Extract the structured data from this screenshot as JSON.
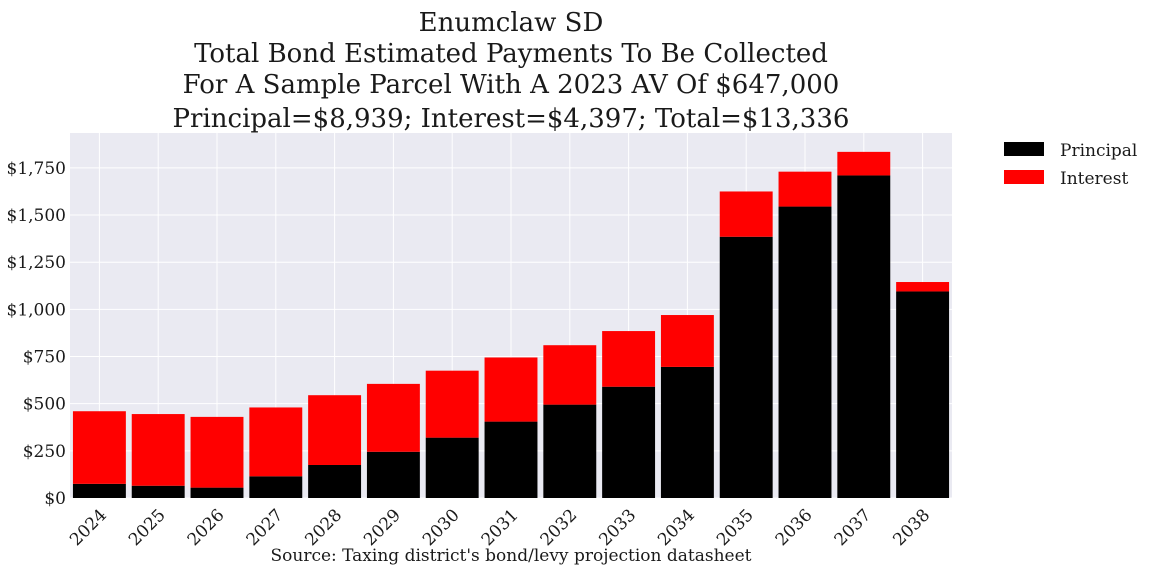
{
  "chart_data": {
    "type": "bar",
    "stacked": true,
    "title": [
      "Enumclaw SD",
      "Total Bond Estimated Payments To Be Collected",
      "For A Sample Parcel With A 2023 AV Of $647,000",
      "Principal=$8,939; Interest=$4,397; Total=$13,336"
    ],
    "categories": [
      "2024",
      "2025",
      "2026",
      "2027",
      "2028",
      "2029",
      "2030",
      "2031",
      "2032",
      "2033",
      "2034",
      "2035",
      "2036",
      "2037",
      "2038"
    ],
    "series": [
      {
        "name": "Principal",
        "color": "#000000",
        "values": [
          75,
          65,
          55,
          115,
          175,
          245,
          320,
          405,
          495,
          590,
          695,
          1385,
          1545,
          1710,
          1095
        ]
      },
      {
        "name": "Interest",
        "color": "#ff0000",
        "values": [
          385,
          380,
          375,
          365,
          370,
          360,
          355,
          340,
          315,
          295,
          275,
          240,
          185,
          125,
          50
        ]
      }
    ],
    "yticks": [
      0,
      250,
      500,
      750,
      1000,
      1250,
      1500,
      1750
    ],
    "ytick_labels": [
      "$0",
      "$250",
      "$500",
      "$750",
      "$1,000",
      "$1,250",
      "$1,500",
      "$1,750"
    ],
    "ylim": [
      0,
      1935
    ],
    "grid": true,
    "plot_background": "#eaeaf2",
    "legend_position": "outside-top-right",
    "xlabel": "Source: Taxing district's bond/levy projection datasheet",
    "ylabel": ""
  }
}
